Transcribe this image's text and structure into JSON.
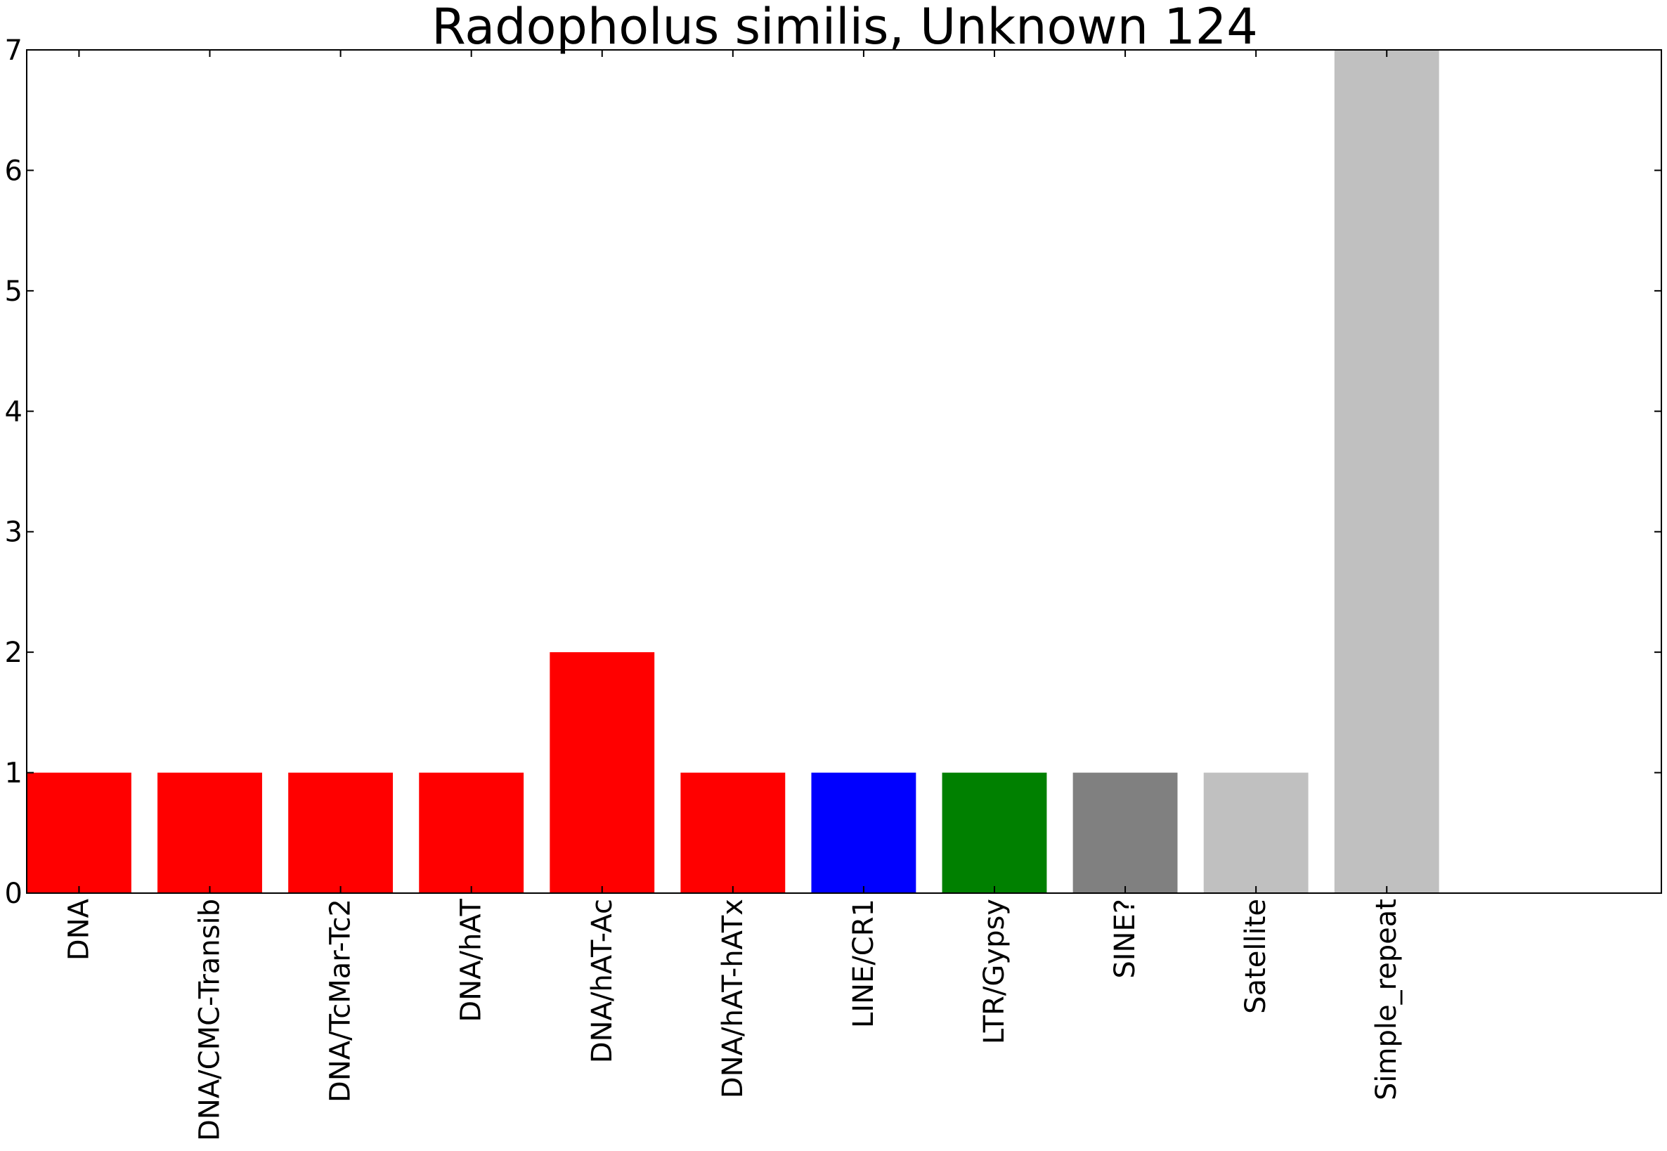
{
  "chart_data": {
    "type": "bar",
    "title": "Radopholus similis, Unknown 124",
    "xlabel": "",
    "ylabel": "",
    "categories": [
      "DNA",
      "DNA/CMC-Transib",
      "DNA/TcMar-Tc2",
      "DNA/hAT",
      "DNA/hAT-Ac",
      "DNA/hAT-hATx",
      "LINE/CR1",
      "LTR/Gypsy",
      "SINE?",
      "Satellite",
      "Simple_repeat"
    ],
    "values": [
      1,
      1,
      1,
      1,
      2,
      1,
      1,
      1,
      1,
      1,
      7
    ],
    "colors": [
      "#ff0000",
      "#ff0000",
      "#ff0000",
      "#ff0000",
      "#ff0000",
      "#ff0000",
      "#0000ff",
      "#008000",
      "#808080",
      "#c0c0c0",
      "#c0c0c0"
    ],
    "ylim": [
      0,
      7
    ],
    "yticks": [
      "0",
      "1",
      "2",
      "3",
      "4",
      "5",
      "6",
      "7"
    ],
    "xlim": [
      0,
      12.5
    ],
    "grid": false,
    "legend": "none"
  }
}
